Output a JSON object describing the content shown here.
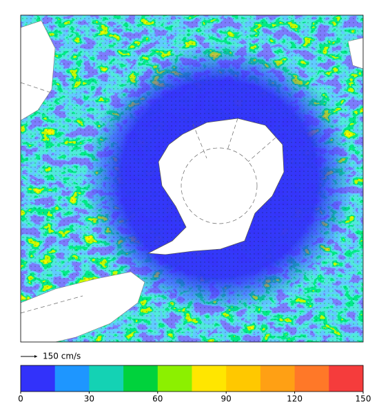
{
  "reference_vector": {
    "label": "150 cm/s"
  },
  "colorbar": {
    "lim": [
      0,
      150
    ],
    "ticks": [
      0,
      30,
      60,
      90,
      120,
      150
    ],
    "colors": [
      "#3232fa",
      "#1e96ff",
      "#14d2b4",
      "#00d23c",
      "#8cf000",
      "#ffe600",
      "#ffc800",
      "#ffa014",
      "#ff7828",
      "#f53c3c"
    ]
  }
}
